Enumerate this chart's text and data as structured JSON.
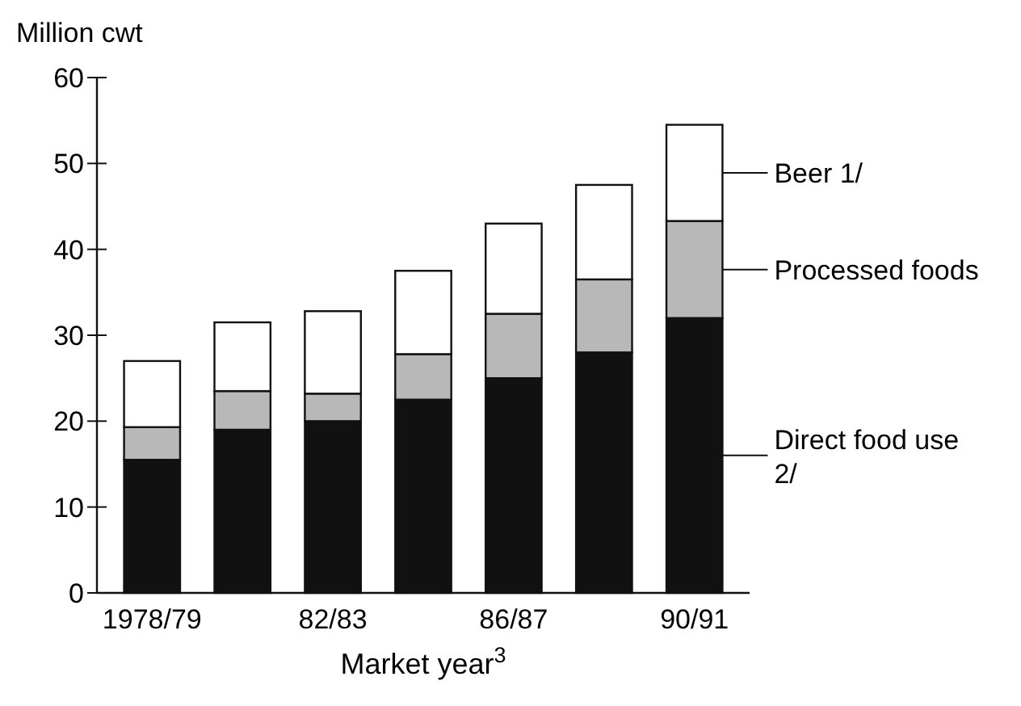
{
  "chart_data": {
    "type": "bar",
    "stacked": true,
    "ylabel": "Million cwt",
    "xlabel": "Market year$^{3}$",
    "categories": [
      "1978/79",
      null,
      "82/83",
      null,
      "86/87",
      null,
      "90/91"
    ],
    "series": [
      {
        "name": "Direct food use 2/",
        "color": "#111111",
        "values": [
          15.5,
          19,
          20,
          22.5,
          25,
          28,
          32
        ]
      },
      {
        "name": "Processed foods",
        "color": "#b8b8b8",
        "values": [
          3.8,
          4.5,
          3.2,
          5.3,
          7.5,
          8.5,
          11.3
        ]
      },
      {
        "name": "Beer 1/",
        "color": "#ffffff",
        "values": [
          7.7,
          8,
          9.6,
          9.7,
          10.5,
          11,
          11.2
        ]
      }
    ],
    "ylim": [
      0,
      60
    ],
    "yticks": [
      0,
      10,
      20,
      30,
      40,
      50,
      60
    ],
    "grid": false,
    "legend": "right"
  }
}
